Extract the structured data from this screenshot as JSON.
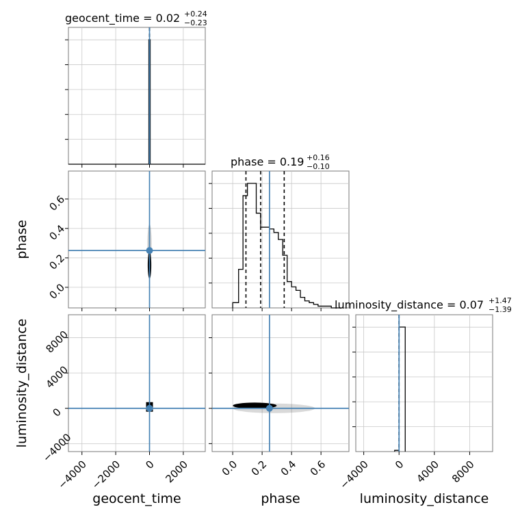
{
  "chart_data": {
    "type": "corner",
    "parameters": [
      "geocent_time",
      "phase",
      "luminosity_distance"
    ],
    "titles": [
      {
        "param": "geocent_time",
        "main": "geocent_time = 0.02",
        "sup": "+0.24",
        "sub": "−0.23"
      },
      {
        "param": "phase",
        "main": "phase = 0.19",
        "sup": "+0.16",
        "sub": "−0.10"
      },
      {
        "param": "luminosity_distance",
        "main": "luminosity_distance = 0.07",
        "sup": "+1.47",
        "sub": "−1.39"
      }
    ],
    "ranges": {
      "geocent_time": [
        -4800,
        3300
      ],
      "phase": [
        -0.14,
        0.79
      ],
      "luminosity_distance": [
        -4900,
        10600
      ]
    },
    "ticks": {
      "geocent_time": [
        -4000,
        -2000,
        0,
        2000
      ],
      "phase": [
        0.0,
        0.2,
        0.4,
        0.6
      ],
      "luminosity_distance": [
        -4000,
        0,
        4000,
        8000
      ]
    },
    "tick_labels": {
      "geocent_time": [
        "−4000",
        "−2000",
        "0",
        "2000"
      ],
      "phase": [
        "0.0",
        "0.2",
        "0.4",
        "0.6"
      ],
      "luminosity_distance": [
        "−4000",
        "0",
        "4000",
        "8000"
      ]
    },
    "truths": {
      "geocent_time": 0,
      "phase": 0.25,
      "luminosity_distance": 0
    },
    "quantiles": {
      "geocent_time": [
        -0.21,
        0.02,
        0.26
      ],
      "phase": [
        0.09,
        0.19,
        0.35
      ],
      "luminosity_distance": [
        -1.32,
        0.07,
        1.54
      ]
    },
    "histograms": {
      "geocent_time": {
        "edges": [
          -4800,
          -40,
          40,
          3300
        ],
        "counts": [
          0,
          1.0,
          0
        ]
      },
      "phase": {
        "edges": [
          0.0,
          0.04,
          0.07,
          0.1,
          0.13,
          0.16,
          0.19,
          0.22,
          0.25,
          0.28,
          0.31,
          0.34,
          0.37,
          0.4,
          0.43,
          0.46,
          0.49,
          0.52,
          0.55,
          0.58,
          0.61,
          0.64,
          0.67,
          0.7,
          0.74
        ],
        "counts": [
          0.03,
          0.22,
          0.64,
          0.71,
          0.71,
          0.54,
          0.46,
          0.46,
          0.45,
          0.43,
          0.39,
          0.3,
          0.15,
          0.12,
          0.1,
          0.06,
          0.04,
          0.03,
          0.02,
          0.01,
          0.01,
          0.01,
          0.0,
          0.0
        ]
      },
      "luminosity_distance": {
        "edges": [
          -500,
          0,
          700
        ],
        "counts": [
          0.01,
          1.0
        ]
      }
    },
    "axis_labels": {
      "x": [
        "geocent_time",
        "phase",
        "luminosity_distance"
      ],
      "y": [
        "phase",
        "luminosity_distance"
      ]
    },
    "grid": true,
    "truth_color": "#4682b4",
    "quantile_style": "dashed"
  }
}
